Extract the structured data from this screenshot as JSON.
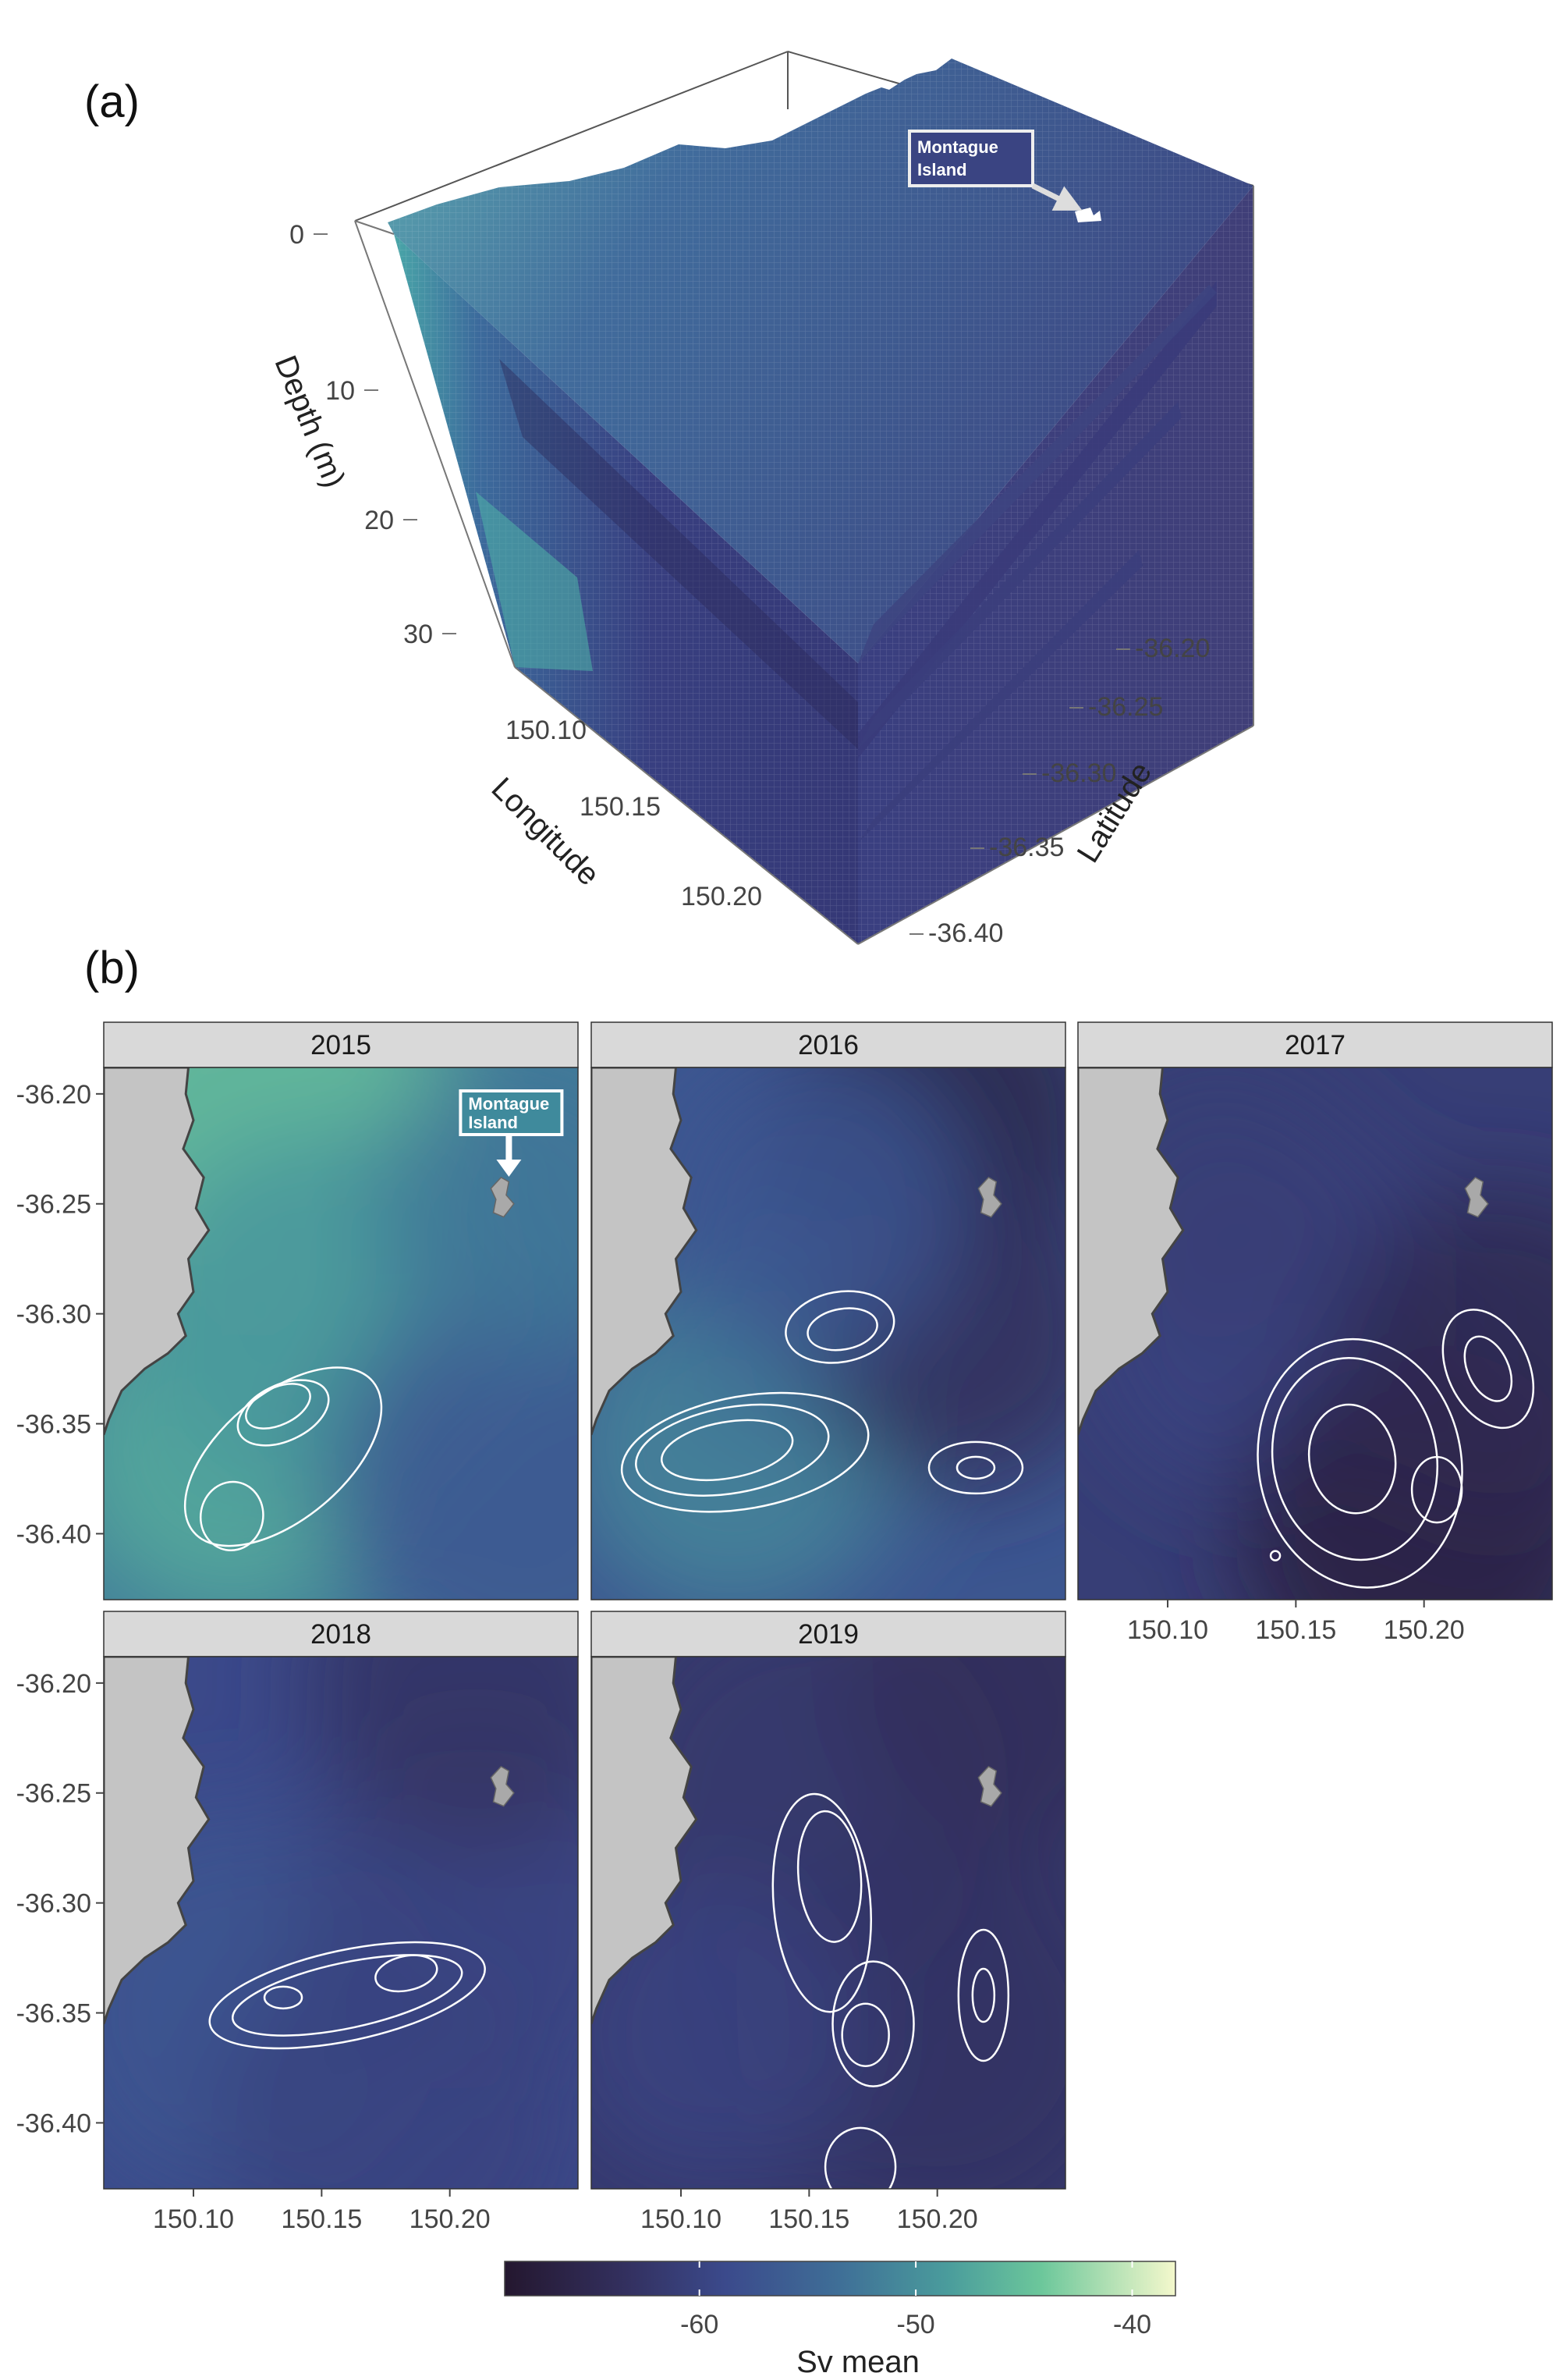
{
  "figure": {
    "panel_a_label": "(a)",
    "panel_b_label": "(b)",
    "island_label_line1": "Montague",
    "island_label_line2": "Island"
  },
  "colors": {
    "low": "#2b1f40",
    "mid_low": "#3e4b8a",
    "mid": "#3f7f9a",
    "mid_high": "#5bbd9a",
    "high": "#f5f7c8",
    "land": "#c4c4c4",
    "coast": "#444444",
    "strip": "#d9d9d9",
    "contour": "#ffffff"
  },
  "chart_data": [
    {
      "type": "3d-voxel",
      "panel": "(a)",
      "axes": {
        "longitude": {
          "label": "Longitude",
          "ticks": [
            "150.10",
            "150.15",
            "150.20"
          ]
        },
        "latitude": {
          "label": "Latitude",
          "ticks": [
            "-36.20",
            "-36.25",
            "-36.30",
            "-36.35",
            "-36.40"
          ]
        },
        "depth": {
          "label": "Depth (m)",
          "ticks": [
            "0",
            "10",
            "20",
            "30"
          ]
        }
      },
      "depth_slices_m": [
        0,
        10,
        20,
        30
      ]
    },
    {
      "type": "heatmap",
      "panel": "(b)",
      "facet_by": "year",
      "facets": [
        {
          "year": "2015",
          "overall_level": -52
        },
        {
          "year": "2016",
          "overall_level": -57
        },
        {
          "year": "2017",
          "overall_level": -61
        },
        {
          "year": "2018",
          "overall_level": -59
        },
        {
          "year": "2019",
          "overall_level": -62
        }
      ],
      "x_ticks": [
        "150.10",
        "150.15",
        "150.20"
      ],
      "x_values": [
        150.1,
        150.15,
        150.2
      ],
      "xlim": [
        150.065,
        150.25
      ],
      "y_ticks": [
        "-36.20",
        "-36.25",
        "-36.30",
        "-36.35",
        "-36.40"
      ],
      "y_values": [
        -36.2,
        -36.25,
        -36.3,
        -36.35,
        -36.4
      ],
      "ylim": [
        -36.43,
        -36.188
      ],
      "colorbar": {
        "title": "Sv mean",
        "ticks": [
          "-60",
          "-50",
          "-40"
        ],
        "tick_values": [
          -60,
          -50,
          -40
        ],
        "range": [
          -69,
          -38
        ]
      }
    }
  ]
}
